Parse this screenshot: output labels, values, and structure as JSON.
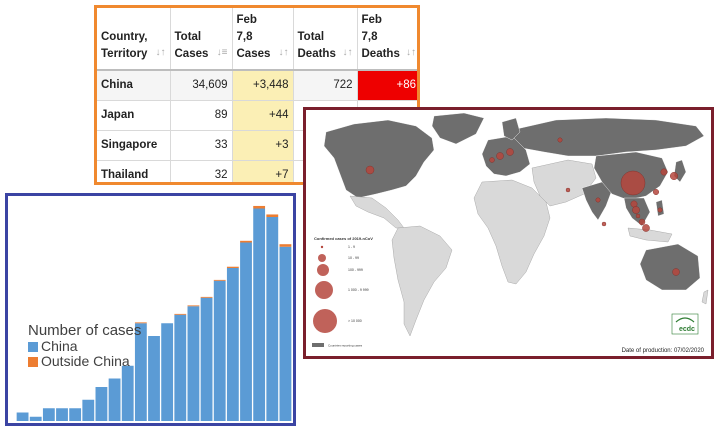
{
  "table": {
    "headers": [
      {
        "lines": [
          "Country,",
          "Territory"
        ],
        "sort": "↓↑"
      },
      {
        "lines": [
          "Total",
          "Cases"
        ],
        "sort": "↓≡"
      },
      {
        "lines": [
          "Feb",
          "7,8",
          "Cases"
        ],
        "sort": "↓↑"
      },
      {
        "lines": [
          "Total",
          "Deaths"
        ],
        "sort": "↓↑"
      },
      {
        "lines": [
          "Feb",
          "7,8",
          "Deaths"
        ],
        "sort": "↓↑"
      }
    ],
    "rows": [
      {
        "country": "China",
        "total_cases": "34,609",
        "new_cases": "+3,448",
        "total_deaths": "722",
        "new_deaths": "+86"
      },
      {
        "country": "Japan",
        "total_cases": "89",
        "new_cases": "+44",
        "total_deaths": "",
        "new_deaths": ""
      },
      {
        "country": "Singapore",
        "total_cases": "33",
        "new_cases": "+3",
        "total_deaths": "",
        "new_deaths": ""
      },
      {
        "country": "Thailand",
        "total_cases": "32",
        "new_cases": "+7",
        "total_deaths": "",
        "new_deaths": ""
      }
    ],
    "colors": {
      "border": "#f0892f",
      "new_cases_bg": "#fbefb5",
      "death_highlight": "#ee0000"
    }
  },
  "map": {
    "legend_title": "Confirmed cases of 2019-nCoV",
    "legend_items": [
      "1 - 9",
      "10 - 99",
      "100 - 999",
      "1 000 - 9 999",
      "> 10 000"
    ],
    "countries_note": "Countries reporting cases",
    "production_date": "Date of production: 07/02/2020",
    "logo_text": "ecdc",
    "colors": {
      "border": "#7a1f2c",
      "reporting": "#6e6e6e",
      "other": "#d9d9d9",
      "bubble": "#b5473d"
    }
  },
  "chart_data": {
    "type": "bar",
    "title": "",
    "legend_title": "Number of cases",
    "series": [
      {
        "name": "China",
        "color": "#5b9bd5",
        "values": [
          1,
          0.5,
          1.5,
          1.5,
          1.5,
          2.5,
          4,
          5,
          6.5,
          11.5,
          10,
          11.5,
          12.5,
          13.5,
          14.5,
          16.5,
          18,
          21,
          25,
          24,
          20.5
        ]
      },
      {
        "name": "Outside China",
        "color": "#ed7d31",
        "values": [
          0,
          0,
          0,
          0,
          0,
          0,
          0,
          0,
          0,
          0.1,
          0,
          0,
          0.1,
          0.1,
          0.1,
          0.1,
          0.15,
          0.2,
          0.3,
          0.3,
          0.3
        ]
      }
    ],
    "ylim": [
      0,
      26
    ],
    "grid": false,
    "legend_placement": "middle-left"
  }
}
